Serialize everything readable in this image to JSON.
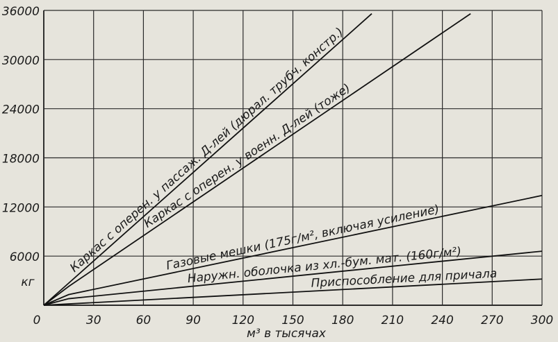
{
  "chart_data": {
    "type": "line",
    "x_label": "м³ в тысячах",
    "y_label": "кг",
    "xlim": [
      0,
      300
    ],
    "xticks": [
      0,
      30,
      60,
      90,
      120,
      150,
      180,
      210,
      240,
      270,
      300
    ],
    "ylim": [
      0,
      36000
    ],
    "yticks": [
      6000,
      12000,
      18000,
      24000,
      30000,
      36000
    ],
    "grid": true,
    "series": [
      {
        "name": "Каркас с оперен. у пассаж. Д-лей (дюрал. трубч. констр.)",
        "color": "#111111",
        "x": [
          0,
          15,
          197.5
        ],
        "values": [
          0,
          2700,
          35600
        ]
      },
      {
        "name": "Каркас с оперен. у военн. Д-лей (тоже)",
        "color": "#111111",
        "x": [
          0,
          15,
          257
        ],
        "values": [
          0,
          2300,
          35600
        ]
      },
      {
        "name": "Газовые мешки (175г/м², включая усиление)",
        "color": "#111111",
        "x": [
          0,
          15,
          300
        ],
        "values": [
          0,
          1300,
          13400
        ]
      },
      {
        "name": "Наружн. оболочка из хл.-бум. мат. (160г/м²)",
        "color": "#111111",
        "x": [
          0,
          15,
          300
        ],
        "values": [
          0,
          800,
          6600
        ]
      },
      {
        "name": "Приспособление для причала",
        "color": "#111111",
        "x": [
          0,
          300
        ],
        "values": [
          0,
          3200
        ]
      }
    ]
  }
}
